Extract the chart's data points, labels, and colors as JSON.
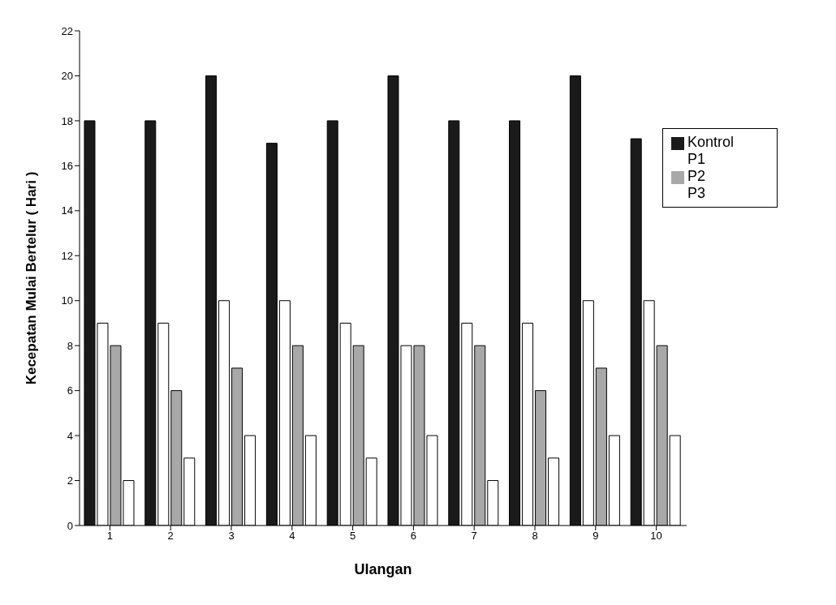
{
  "chart_data": {
    "type": "bar",
    "xlabel": "Ulangan",
    "ylabel": "Kecepatan Mulai Bertelur ( Hari )",
    "categories": [
      "1",
      "2",
      "3",
      "4",
      "5",
      "6",
      "7",
      "8",
      "9",
      "10"
    ],
    "series": [
      {
        "name": "Kontrol",
        "color": "#1a1a1a",
        "values": [
          18,
          18,
          20,
          17,
          18,
          20,
          18,
          18,
          20,
          17.2
        ]
      },
      {
        "name": "P1",
        "color": "#ffffff",
        "values": [
          9,
          9,
          10,
          10,
          9,
          8,
          9,
          9,
          10,
          10
        ]
      },
      {
        "name": "P2",
        "color": "#a8a8a8",
        "values": [
          8,
          6,
          7,
          8,
          8,
          8,
          8,
          6,
          7,
          8
        ]
      },
      {
        "name": "P3",
        "color": "#ffffff",
        "values": [
          2,
          3,
          4,
          4,
          3,
          4,
          2,
          3,
          4,
          4
        ]
      }
    ],
    "ylim": [
      0,
      22
    ],
    "yticks": [
      0,
      2,
      4,
      6,
      8,
      10,
      12,
      14,
      16,
      18,
      20,
      22
    ],
    "grid": false,
    "legend": "top right"
  }
}
